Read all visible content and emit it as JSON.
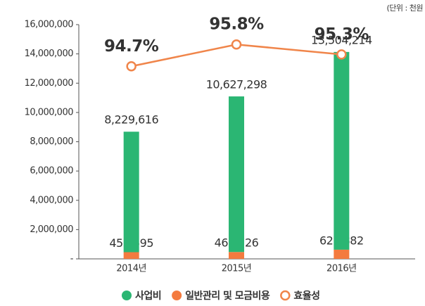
{
  "chart_data": {
    "type": "bar",
    "unit": "(단위 : 천원",
    "categories": [
      "2014년",
      "2015년",
      "2016년"
    ],
    "stacked": true,
    "series": [
      {
        "name": "일반관리 및 모금비용",
        "color": "#f47b3f",
        "values": [
          456595,
          468726,
          628882
        ],
        "value_labels": [
          "456,595",
          "468,726",
          "628,882"
        ]
      },
      {
        "name": "사업비",
        "color": "#2bb673",
        "values": [
          8229616,
          10627298,
          13504214
        ],
        "value_labels": [
          "8,229,616",
          "10,627,298",
          "13,504,214"
        ]
      },
      {
        "name": "효율성",
        "type": "line",
        "axis": "y2",
        "color": "#f0854a",
        "values": [
          94.7,
          95.8,
          95.3
        ],
        "value_labels": [
          "94.7%",
          "95.8%",
          "95.3%"
        ]
      }
    ],
    "legend_order": [
      1,
      0,
      2
    ],
    "ylim": [
      0,
      16000000
    ],
    "yticks": [
      {
        "value": 0,
        "label": "-"
      },
      {
        "value": 2000000,
        "label": "2,000,000"
      },
      {
        "value": 4000000,
        "label": "4,000,000"
      },
      {
        "value": 6000000,
        "label": "6,000,000"
      },
      {
        "value": 8000000,
        "label": "8,000,000"
      },
      {
        "value": 10000000,
        "label": "10,000,000"
      },
      {
        "value": 12000000,
        "label": "12,000,000"
      },
      {
        "value": 14000000,
        "label": "14,000,000"
      },
      {
        "value": 16000000,
        "label": "16,000,000"
      }
    ],
    "y2lim": [
      85,
      96.8
    ],
    "legend": "bottom"
  }
}
